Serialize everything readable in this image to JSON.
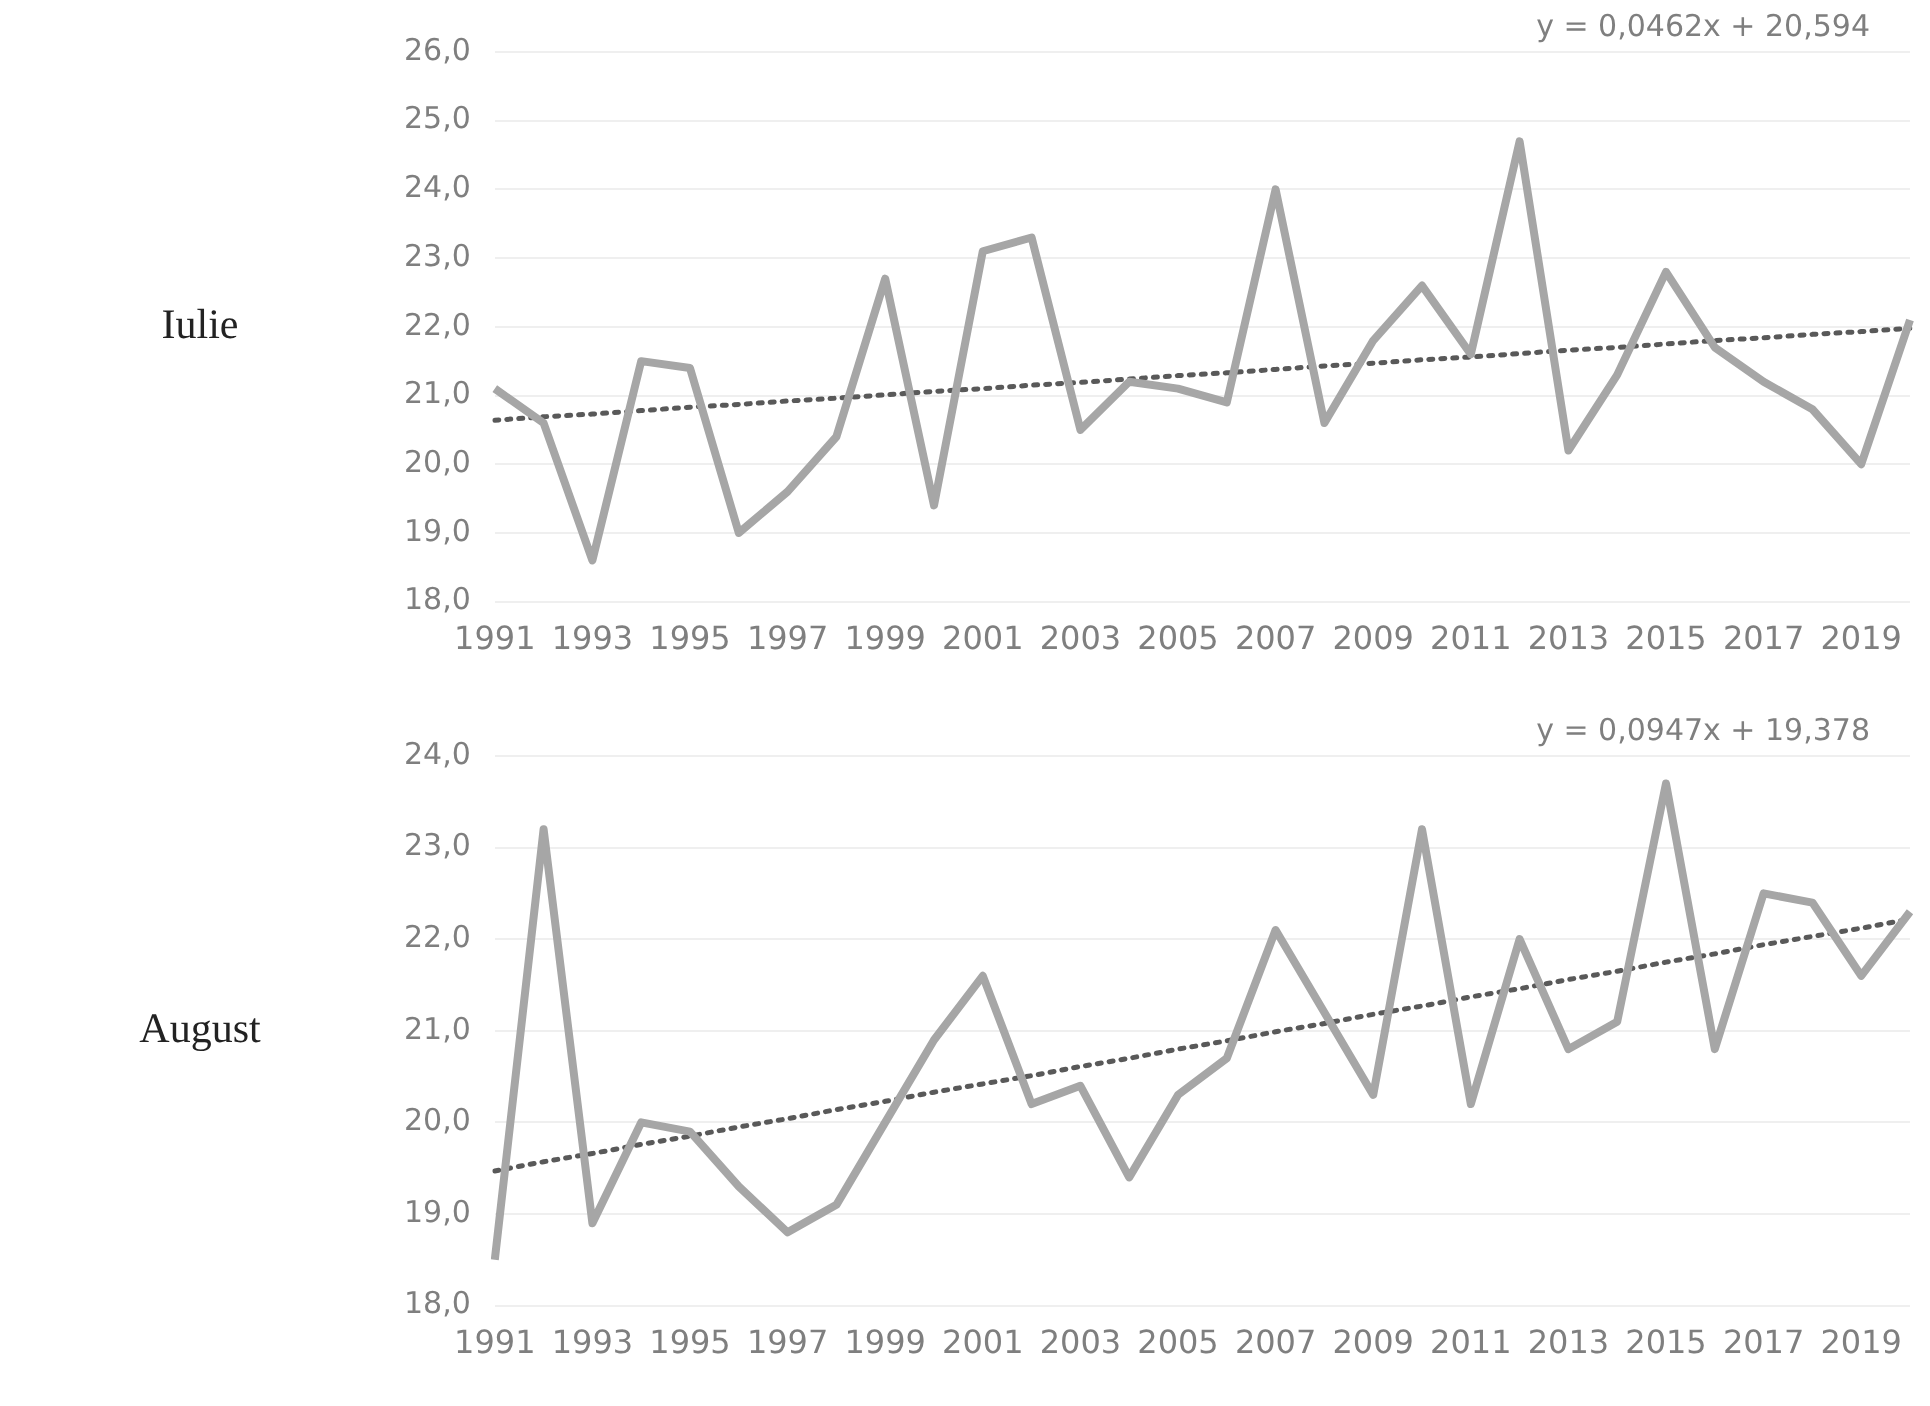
{
  "chart_data": [
    {
      "type": "line",
      "ylabel": "Iulie",
      "categories": [
        "1991",
        null,
        "1993",
        null,
        "1995",
        null,
        "1997",
        null,
        "1999",
        null,
        "2001",
        null,
        "2003",
        null,
        "2005",
        null,
        "2007",
        null,
        "2009",
        null,
        "2011",
        null,
        "2013",
        null,
        "2015",
        null,
        "2017",
        null,
        "2019",
        null
      ],
      "series": [
        {
          "color": "#a6a6a6",
          "values": [
            21.1,
            20.6,
            18.6,
            21.5,
            21.4,
            19.0,
            19.6,
            20.4,
            22.7,
            19.4,
            23.1,
            23.3,
            20.5,
            21.2,
            21.1,
            20.9,
            24.0,
            20.6,
            21.8,
            22.6,
            21.6,
            24.7,
            20.2,
            21.3,
            22.8,
            21.7,
            21.2,
            20.8,
            20.0,
            22.1
          ]
        },
        {
          "color": "#595959",
          "line_style": "dotted",
          "values": [
            20.64,
            20.69,
            20.73,
            20.78,
            20.83,
            20.87,
            20.92,
            20.96,
            21.01,
            21.06,
            21.1,
            21.15,
            21.19,
            21.24,
            21.29,
            21.33,
            21.38,
            21.43,
            21.47,
            21.52,
            21.56,
            21.61,
            21.66,
            21.7,
            21.75,
            21.8,
            21.84,
            21.89,
            21.93,
            21.98
          ]
        }
      ],
      "ylim": [
        18,
        26
      ],
      "yticks": [
        {
          "value": 18,
          "label": "18,0"
        },
        {
          "value": 19,
          "label": "19,0"
        },
        {
          "value": 20,
          "label": "20,0"
        },
        {
          "value": 21,
          "label": "21,0"
        },
        {
          "value": 22,
          "label": "22,0"
        },
        {
          "value": 23,
          "label": "23,0"
        },
        {
          "value": 24,
          "label": "24,0"
        },
        {
          "value": 25,
          "label": "25,0"
        },
        {
          "value": 26,
          "label": "26,0"
        }
      ],
      "grid": "y",
      "legend": false,
      "marker": "none",
      "line_style": "solid",
      "annotations": [
        "y = 0,0462x + 20,594"
      ]
    },
    {
      "type": "line",
      "ylabel": "August",
      "categories": [
        "1991",
        null,
        "1993",
        null,
        "1995",
        null,
        "1997",
        null,
        "1999",
        null,
        "2001",
        null,
        "2003",
        null,
        "2005",
        null,
        "2007",
        null,
        "2009",
        null,
        "2011",
        null,
        "2013",
        null,
        "2015",
        null,
        "2017",
        null,
        "2019",
        null
      ],
      "series": [
        {
          "color": "#a6a6a6",
          "values": [
            18.5,
            23.2,
            18.9,
            20.0,
            19.9,
            19.3,
            18.8,
            19.1,
            20.0,
            20.9,
            21.6,
            20.2,
            20.4,
            19.4,
            20.3,
            20.7,
            22.1,
            21.2,
            20.3,
            23.2,
            20.2,
            22.0,
            20.8,
            21.1,
            23.7,
            20.8,
            22.5,
            22.4,
            21.6,
            22.3
          ]
        },
        {
          "color": "#595959",
          "line_style": "dotted",
          "values": [
            19.47,
            19.57,
            19.66,
            19.76,
            19.85,
            19.95,
            20.04,
            20.14,
            20.23,
            20.33,
            20.42,
            20.51,
            20.61,
            20.7,
            20.8,
            20.89,
            20.99,
            21.08,
            21.18,
            21.27,
            21.37,
            21.46,
            21.56,
            21.65,
            21.75,
            21.84,
            21.94,
            22.03,
            22.12,
            22.22
          ]
        }
      ],
      "ylim": [
        18,
        24
      ],
      "yticks": [
        {
          "value": 18,
          "label": "18,0"
        },
        {
          "value": 19,
          "label": "19,0"
        },
        {
          "value": 20,
          "label": "20,0"
        },
        {
          "value": 21,
          "label": "21,0"
        },
        {
          "value": 22,
          "label": "22,0"
        },
        {
          "value": 23,
          "label": "23,0"
        },
        {
          "value": 24,
          "label": "24,0"
        }
      ],
      "grid": "y",
      "legend": false,
      "marker": "none",
      "line_style": "solid",
      "annotations": [
        "y = 0,0947x + 19,378"
      ]
    }
  ]
}
